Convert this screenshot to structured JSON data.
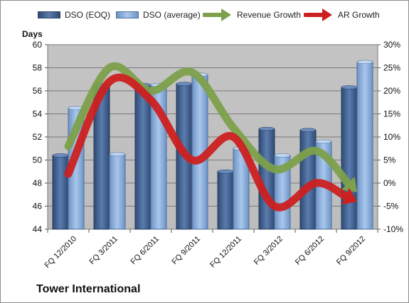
{
  "chart_data": {
    "type": "bar",
    "title": "",
    "ylabel": "Days",
    "ylim": [
      44,
      60
    ],
    "yticks": [
      44,
      46,
      48,
      50,
      52,
      54,
      56,
      58,
      60
    ],
    "y2lim": [
      -10,
      30
    ],
    "y2ticks": [
      "-10%",
      "-5%",
      "0%",
      "5%",
      "10%",
      "15%",
      "20%",
      "25%",
      "30%"
    ],
    "y2values": [
      -10,
      -5,
      0,
      5,
      10,
      15,
      20,
      25,
      30
    ],
    "categories": [
      "FQ 12/2010",
      "FQ 3/2011",
      "FQ 6/2011",
      "FQ 9/2011",
      "FQ 12/2011",
      "FQ 3/2012",
      "FQ 6/2012",
      "FQ 9/2012"
    ],
    "series": [
      {
        "name": "DSO (EOQ)",
        "type": "bar",
        "axis": "left",
        "color": "#4a6a9a",
        "values": [
          50.4,
          56.5,
          56.5,
          56.6,
          49.0,
          52.7,
          52.6,
          56.3
        ]
      },
      {
        "name": "DSO (average)",
        "type": "bar",
        "axis": "left",
        "color": "#8fb2de",
        "values": [
          54.5,
          50.5,
          56.5,
          57.4,
          51.0,
          50.4,
          51.6,
          58.5
        ]
      },
      {
        "name": "Revenue Growth",
        "type": "line",
        "axis": "right",
        "unit": "%",
        "color": "#7da04a",
        "values": [
          8,
          25,
          20,
          24,
          12,
          3,
          7,
          -2
        ]
      },
      {
        "name": "AR Growth",
        "type": "line",
        "axis": "right",
        "unit": "%",
        "color": "#cc2020",
        "values": [
          2,
          22,
          18,
          5,
          10,
          -5,
          0,
          -4
        ]
      }
    ],
    "grid": true,
    "legend": "top",
    "company": "Tower International"
  }
}
